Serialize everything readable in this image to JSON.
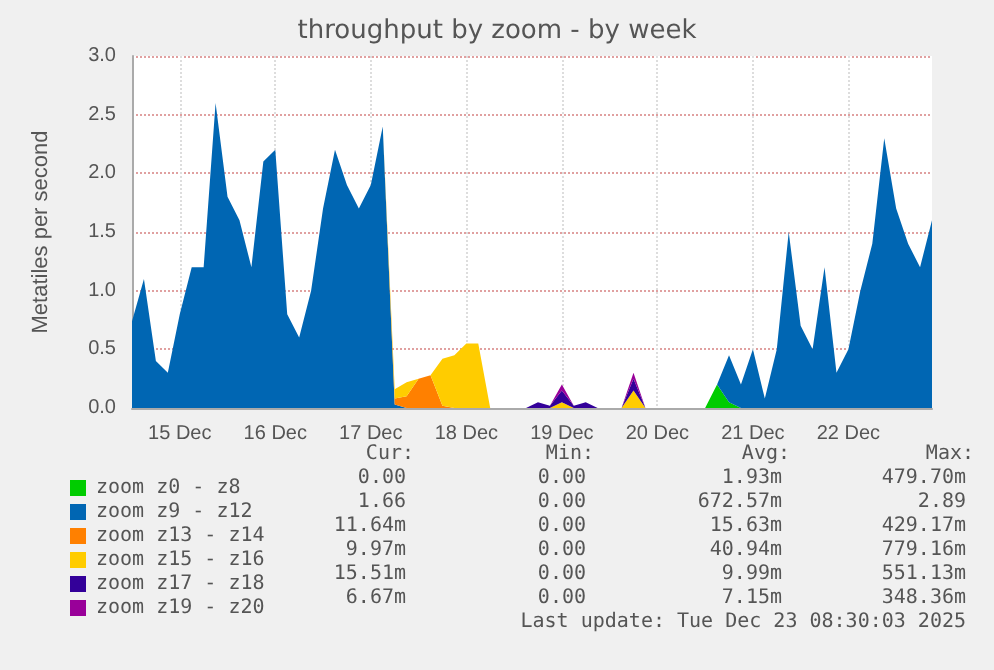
{
  "chart_data": {
    "type": "area",
    "title": "throughput by zoom - by week",
    "ylabel": "Metatiles per second",
    "stacked": true,
    "x": [
      "2025-12-15T00:00",
      "2025-12-15T03:00",
      "2025-12-15T06:00",
      "2025-12-15T09:00",
      "2025-12-15T12:00",
      "2025-12-15T15:00",
      "2025-12-15T18:00",
      "2025-12-15T21:00",
      "2025-12-16T00:00",
      "2025-12-16T03:00",
      "2025-12-16T06:00",
      "2025-12-16T09:00",
      "2025-12-16T12:00",
      "2025-12-16T15:00",
      "2025-12-16T18:00",
      "2025-12-16T21:00",
      "2025-12-17T00:00",
      "2025-12-17T03:00",
      "2025-12-17T06:00",
      "2025-12-17T09:00",
      "2025-12-17T12:00",
      "2025-12-17T15:00",
      "2025-12-17T18:00",
      "2025-12-17T21:00",
      "2025-12-18T00:00",
      "2025-12-18T03:00",
      "2025-12-18T06:00",
      "2025-12-18T09:00",
      "2025-12-18T12:00",
      "2025-12-18T15:00",
      "2025-12-18T18:00",
      "2025-12-18T21:00",
      "2025-12-19T00:00",
      "2025-12-19T03:00",
      "2025-12-19T06:00",
      "2025-12-19T09:00",
      "2025-12-19T12:00",
      "2025-12-19T15:00",
      "2025-12-19T18:00",
      "2025-12-19T21:00",
      "2025-12-20T00:00",
      "2025-12-20T03:00",
      "2025-12-20T06:00",
      "2025-12-20T09:00",
      "2025-12-20T12:00",
      "2025-12-20T15:00",
      "2025-12-20T18:00",
      "2025-12-20T21:00",
      "2025-12-21T00:00",
      "2025-12-21T03:00",
      "2025-12-21T06:00",
      "2025-12-21T09:00",
      "2025-12-21T12:00",
      "2025-12-21T15:00",
      "2025-12-21T18:00",
      "2025-12-21T21:00",
      "2025-12-22T00:00",
      "2025-12-22T03:00",
      "2025-12-22T06:00",
      "2025-12-22T09:00",
      "2025-12-22T12:00",
      "2025-12-22T15:00",
      "2025-12-22T18:00",
      "2025-12-22T21:00",
      "2025-12-23T00:00",
      "2025-12-23T03:00",
      "2025-12-23T06:00",
      "2025-12-23T09:00"
    ],
    "series": [
      {
        "name": "zoom z0 - z8",
        "color": "#00cc00",
        "values": [
          null,
          null,
          null,
          null,
          null,
          null,
          null,
          null,
          null,
          null,
          null,
          null,
          null,
          null,
          null,
          null,
          null,
          null,
          null,
          null,
          null,
          null,
          null,
          null,
          null,
          null,
          null,
          null,
          null,
          null,
          null,
          null,
          null,
          null,
          null,
          null,
          null,
          null,
          null,
          null,
          null,
          null,
          null,
          null,
          null,
          null,
          null,
          null,
          0,
          0.2,
          0.05,
          0,
          null,
          null,
          null,
          null,
          null,
          null,
          null,
          null,
          null,
          null,
          null,
          null,
          null,
          null,
          null,
          null
        ]
      },
      {
        "name": "zoom z9 - z12",
        "color": "#0066b3",
        "values": [
          0.74,
          1.1,
          0.4,
          0.3,
          0.8,
          1.2,
          1.2,
          2.6,
          1.8,
          1.6,
          1.2,
          2.1,
          2.2,
          0.8,
          0.6,
          1.0,
          1.7,
          2.2,
          1.9,
          1.7,
          1.9,
          2.4,
          0.03,
          0,
          null,
          null,
          null,
          null,
          null,
          null,
          null,
          null,
          null,
          null,
          null,
          null,
          null,
          null,
          null,
          null,
          null,
          null,
          null,
          null,
          null,
          null,
          null,
          null,
          null,
          0,
          0.4,
          0.2,
          0.5,
          0.08,
          0.5,
          1.5,
          0.7,
          0.5,
          1.2,
          0.3,
          0.5,
          1.0,
          1.4,
          2.3,
          1.7,
          1.4,
          1.2,
          1.6
        ]
      },
      {
        "name": "zoom z13 - z14",
        "color": "#ff8000",
        "values": [
          null,
          null,
          null,
          null,
          null,
          null,
          null,
          null,
          null,
          null,
          null,
          null,
          null,
          null,
          null,
          null,
          null,
          null,
          null,
          null,
          null,
          0,
          0.05,
          0.1,
          0.25,
          0.28,
          0.02,
          0,
          null,
          null,
          null,
          null,
          null,
          null,
          null,
          null,
          null,
          null,
          null,
          null,
          null,
          null,
          null,
          null,
          null,
          null,
          null,
          null,
          null,
          null,
          null,
          null,
          null,
          null,
          null,
          null,
          null,
          null,
          null,
          null,
          null,
          null,
          null,
          null,
          null,
          null,
          null,
          null
        ]
      },
      {
        "name": "zoom z15 - z16",
        "color": "#ffcc00",
        "values": [
          null,
          null,
          null,
          null,
          null,
          null,
          null,
          null,
          null,
          null,
          null,
          null,
          null,
          null,
          null,
          null,
          null,
          null,
          null,
          null,
          null,
          0,
          0.08,
          0.12,
          0,
          0,
          0.4,
          0.45,
          0.55,
          0.55,
          0,
          null,
          null,
          null,
          null,
          0,
          0.05,
          0,
          null,
          null,
          null,
          0,
          0.15,
          0,
          null,
          null,
          null,
          null,
          null,
          null,
          null,
          null,
          null,
          null,
          null,
          null,
          null,
          null,
          null,
          null,
          null,
          null,
          null,
          null,
          null,
          null,
          null,
          null
        ]
      },
      {
        "name": "zoom z17 - z18",
        "color": "#330099",
        "values": [
          null,
          null,
          null,
          null,
          null,
          null,
          null,
          null,
          null,
          null,
          null,
          null,
          null,
          null,
          null,
          null,
          null,
          null,
          null,
          null,
          null,
          null,
          null,
          null,
          null,
          null,
          null,
          null,
          null,
          null,
          null,
          null,
          null,
          0,
          0.05,
          0.02,
          0.1,
          0.02,
          0.05,
          0,
          null,
          0,
          0.1,
          0,
          null,
          null,
          null,
          null,
          null,
          null,
          null,
          null,
          null,
          null,
          null,
          null,
          null,
          null,
          null,
          null,
          null,
          null,
          null,
          null,
          null,
          null,
          null,
          null
        ]
      },
      {
        "name": "zoom z19 - z20",
        "color": "#990099",
        "values": [
          null,
          null,
          null,
          null,
          null,
          null,
          null,
          null,
          null,
          null,
          null,
          null,
          null,
          null,
          null,
          null,
          null,
          null,
          null,
          null,
          null,
          null,
          null,
          null,
          null,
          null,
          null,
          null,
          null,
          null,
          null,
          null,
          null,
          null,
          null,
          0,
          0.05,
          0,
          null,
          null,
          null,
          0,
          0.05,
          0,
          null,
          null,
          null,
          null,
          null,
          null,
          null,
          null,
          null,
          null,
          null,
          null,
          null,
          null,
          null,
          null,
          null,
          null,
          null,
          null,
          null,
          null,
          null,
          null
        ]
      }
    ],
    "xlim": [
      "2025-12-15T00:00",
      "2025-12-23T09:00"
    ],
    "xticks": [
      {
        "value": "2025-12-15T12:00",
        "label": "15 Dec"
      },
      {
        "value": "2025-12-16T12:00",
        "label": "16 Dec"
      },
      {
        "value": "2025-12-17T12:00",
        "label": "17 Dec"
      },
      {
        "value": "2025-12-18T12:00",
        "label": "18 Dec"
      },
      {
        "value": "2025-12-19T12:00",
        "label": "19 Dec"
      },
      {
        "value": "2025-12-20T12:00",
        "label": "20 Dec"
      },
      {
        "value": "2025-12-21T12:00",
        "label": "21 Dec"
      },
      {
        "value": "2025-12-22T12:00",
        "label": "22 Dec"
      }
    ],
    "ylim": [
      0,
      3
    ],
    "yticks": [
      {
        "value": 0,
        "label": "0.0"
      },
      {
        "value": 0.5,
        "label": "0.5"
      },
      {
        "value": 1,
        "label": "1.0"
      },
      {
        "value": 1.5,
        "label": "1.5"
      },
      {
        "value": 2,
        "label": "2.0"
      },
      {
        "value": 2.5,
        "label": "2.5"
      },
      {
        "value": 3,
        "label": "3.0"
      }
    ],
    "grid": true,
    "legend": "bottom left",
    "annotations": [
      "Cur:",
      "Min:",
      "Avg:",
      "Max:",
      "0.00",
      "0.00",
      "1.93m",
      "479.70m",
      "1.66",
      "0.00",
      "672.57m",
      "2.89",
      "11.64m",
      "0.00",
      "15.63m",
      "429.17m",
      "9.97m",
      "0.00",
      "40.94m",
      "779.16m",
      "15.51m",
      "0.00",
      "9.99m",
      "551.13m",
      "6.67m",
      "0.00",
      "7.15m",
      "348.36m",
      "Last update: Tue Dec 23 08:30:03 2025"
    ]
  }
}
